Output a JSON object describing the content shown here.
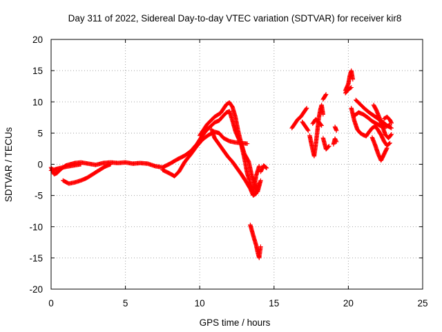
{
  "chart_data": {
    "type": "scatter",
    "title": "Day 311 of 2022, Sidereal Day-to-day VTEC variation (SDTVAR) for receiver kir8",
    "xlabel": "GPS time / hours",
    "ylabel": "SDTVAR / TECUs",
    "xlim": [
      0,
      25
    ],
    "ylim": [
      -20,
      20
    ],
    "xticks": [
      0,
      5,
      10,
      15,
      20,
      25
    ],
    "yticks": [
      -20,
      -15,
      -10,
      -5,
      0,
      5,
      10,
      15,
      20
    ],
    "grid": true,
    "marker": "+",
    "color": "#ff0000",
    "series": [
      {
        "name": "SDTVAR",
        "segments": [
          [
            [
              0,
              -0.5
            ],
            [
              0.2,
              -1.6
            ],
            [
              0.4,
              -1.4
            ],
            [
              0.6,
              -0.9
            ],
            [
              0.8,
              -0.5
            ],
            [
              1.0,
              -0.2
            ],
            [
              1.3,
              0.0
            ],
            [
              1.6,
              0.2
            ],
            [
              2.0,
              0.3
            ],
            [
              2.5,
              0.1
            ],
            [
              3.0,
              -0.1
            ],
            [
              3.5,
              0.2
            ],
            [
              4.0,
              0.3
            ],
            [
              4.5,
              0.2
            ],
            [
              5.0,
              0.3
            ],
            [
              5.5,
              0.1
            ],
            [
              6.0,
              0.2
            ],
            [
              6.5,
              0.1
            ],
            [
              7.0,
              -0.3
            ],
            [
              7.5,
              -0.5
            ],
            [
              8.0,
              0.1
            ],
            [
              8.5,
              0.8
            ],
            [
              9.0,
              1.4
            ],
            [
              9.4,
              2.1
            ],
            [
              9.8,
              3.2
            ],
            [
              10.1,
              4.3
            ],
            [
              10.4,
              5.3
            ],
            [
              10.7,
              6.0
            ],
            [
              11.0,
              6.7
            ],
            [
              11.3,
              7.0
            ],
            [
              11.6,
              7.8
            ],
            [
              11.8,
              8.3
            ],
            [
              12.0,
              8.5
            ],
            [
              12.2,
              7.0
            ],
            [
              12.4,
              5.3
            ],
            [
              12.6,
              4.2
            ],
            [
              12.8,
              3.1
            ],
            [
              13.0,
              1.0
            ],
            [
              13.2,
              -1.5
            ],
            [
              13.4,
              -3.0
            ],
            [
              13.6,
              -4.6
            ],
            [
              13.8,
              -1.8
            ],
            [
              14.0,
              -0.3
            ]
          ],
          [
            [
              0.8,
              -2.6
            ],
            [
              1.2,
              -3.1
            ],
            [
              1.6,
              -2.9
            ],
            [
              2.0,
              -2.6
            ],
            [
              2.4,
              -2.2
            ],
            [
              2.8,
              -1.6
            ],
            [
              3.2,
              -1.0
            ],
            [
              3.6,
              -0.4
            ],
            [
              4.0,
              0.0
            ]
          ],
          [
            [
              0,
              -1.0
            ],
            [
              0.3,
              -0.8
            ],
            [
              0.6,
              -0.6
            ],
            [
              1.0,
              -0.4
            ],
            [
              1.5,
              -0.2
            ],
            [
              2.0,
              0.0
            ]
          ],
          [
            [
              7.5,
              -0.9
            ],
            [
              8.0,
              -1.5
            ],
            [
              8.3,
              -1.9
            ],
            [
              8.6,
              -1.2
            ],
            [
              9.0,
              0.4
            ],
            [
              9.4,
              1.6
            ],
            [
              9.8,
              2.9
            ],
            [
              10.2,
              4.0
            ],
            [
              10.6,
              4.7
            ],
            [
              11.0,
              5.2
            ],
            [
              11.3,
              5.0
            ],
            [
              11.6,
              4.2
            ],
            [
              12.0,
              3.7
            ],
            [
              12.4,
              3.5
            ],
            [
              12.8,
              3.4
            ],
            [
              13.2,
              3.3
            ]
          ],
          [
            [
              10.0,
              4.6
            ],
            [
              10.5,
              6.4
            ],
            [
              11.0,
              7.6
            ],
            [
              11.4,
              8.2
            ],
            [
              11.8,
              9.6
            ],
            [
              12.0,
              9.9
            ],
            [
              12.2,
              9.2
            ],
            [
              12.4,
              7.6
            ],
            [
              12.6,
              5.2
            ],
            [
              12.8,
              3.3
            ],
            [
              13.0,
              1.7
            ],
            [
              13.3,
              0.4
            ],
            [
              13.5,
              -1.8
            ],
            [
              13.7,
              -3.2
            ],
            [
              13.9,
              -4.4
            ],
            [
              14.1,
              -2.6
            ]
          ],
          [
            [
              10.8,
              5.6
            ],
            [
              11.0,
              4.2
            ],
            [
              11.3,
              3.2
            ],
            [
              11.6,
              2.2
            ],
            [
              11.9,
              1.2
            ],
            [
              12.2,
              0.4
            ],
            [
              12.5,
              -0.6
            ],
            [
              12.8,
              -1.6
            ],
            [
              13.1,
              -2.7
            ],
            [
              13.4,
              -3.9
            ],
            [
              13.6,
              -5.0
            ],
            [
              13.8,
              -4.7
            ],
            [
              14.0,
              -3.0
            ]
          ],
          [
            [
              13.4,
              -9.7
            ],
            [
              13.6,
              -11.4
            ],
            [
              13.8,
              -13.0
            ],
            [
              13.9,
              -14.1
            ],
            [
              14.0,
              -15.0
            ],
            [
              14.1,
              -13.2
            ]
          ],
          [
            [
              14.1,
              -1.2
            ],
            [
              14.3,
              -0.2
            ],
            [
              14.5,
              -0.6
            ]
          ],
          [
            [
              16.2,
              5.8
            ],
            [
              16.4,
              6.5
            ],
            [
              16.6,
              7.2
            ],
            [
              16.8,
              7.6
            ],
            [
              17.0,
              8.3
            ],
            [
              17.2,
              9.0
            ]
          ],
          [
            [
              16.9,
              6.8
            ],
            [
              17.1,
              6.1
            ],
            [
              17.3,
              5.4
            ]
          ],
          [
            [
              17.4,
              4.6
            ],
            [
              17.5,
              3.4
            ],
            [
              17.6,
              2.3
            ],
            [
              17.7,
              1.3
            ],
            [
              17.8,
              3.0
            ],
            [
              17.9,
              5.0
            ],
            [
              18.0,
              7.2
            ],
            [
              18.1,
              8.6
            ],
            [
              18.2,
              9.5
            ],
            [
              18.3,
              8.0
            ]
          ],
          [
            [
              17.6,
              6.5
            ],
            [
              17.8,
              7.2
            ],
            [
              18.0,
              6.8
            ],
            [
              18.2,
              6.2
            ]
          ],
          [
            [
              18.3,
              10.4
            ],
            [
              18.5,
              11.2
            ]
          ],
          [
            [
              18.3,
              4.2
            ],
            [
              18.5,
              2.4
            ],
            [
              18.7,
              2.9
            ]
          ],
          [
            [
              19.0,
              3.2
            ],
            [
              19.1,
              4.1
            ],
            [
              19.2,
              3.6
            ]
          ],
          [
            [
              19.1,
              6.0
            ],
            [
              19.2,
              5.4
            ]
          ],
          [
            [
              19.8,
              11.8
            ],
            [
              20.0,
              12.9
            ],
            [
              20.1,
              14.2
            ],
            [
              20.2,
              15.0
            ],
            [
              20.3,
              13.6
            ]
          ],
          [
            [
              19.8,
              11.4
            ],
            [
              20.0,
              12.0
            ],
            [
              20.2,
              12.3
            ]
          ],
          [
            [
              20.2,
              9.0
            ],
            [
              20.4,
              7.0
            ],
            [
              20.6,
              5.6
            ],
            [
              20.8,
              5.0
            ],
            [
              21.0,
              4.7
            ],
            [
              21.2,
              4.5
            ],
            [
              21.4,
              5.2
            ],
            [
              21.6,
              5.8
            ],
            [
              21.8,
              6.1
            ],
            [
              22.0,
              5.5
            ],
            [
              22.2,
              4.7
            ],
            [
              22.4,
              3.7
            ],
            [
              22.6,
              3.0
            ],
            [
              22.8,
              3.4
            ]
          ],
          [
            [
              20.5,
              10.3
            ],
            [
              20.8,
              9.6
            ],
            [
              21.1,
              8.9
            ],
            [
              21.4,
              8.3
            ],
            [
              21.7,
              7.8
            ],
            [
              22.0,
              7.3
            ],
            [
              22.3,
              6.8
            ],
            [
              22.6,
              6.2
            ],
            [
              22.9,
              5.8
            ]
          ],
          [
            [
              20.4,
              7.8
            ],
            [
              20.7,
              8.3
            ],
            [
              21.0,
              8.0
            ],
            [
              21.3,
              7.5
            ],
            [
              21.6,
              6.9
            ],
            [
              21.9,
              6.5
            ],
            [
              22.2,
              6.1
            ],
            [
              22.5,
              6.0
            ],
            [
              22.8,
              6.3
            ]
          ],
          [
            [
              21.6,
              4.3
            ],
            [
              21.8,
              3.1
            ],
            [
              22.0,
              1.7
            ],
            [
              22.2,
              0.6
            ],
            [
              22.4,
              1.6
            ],
            [
              22.6,
              2.6
            ]
          ],
          [
            [
              21.7,
              9.5
            ],
            [
              21.9,
              8.6
            ],
            [
              22.1,
              7.4
            ],
            [
              22.3,
              6.0
            ],
            [
              22.5,
              4.7
            ],
            [
              22.7,
              4.2
            ],
            [
              22.9,
              4.8
            ]
          ],
          [
            [
              22.4,
              7.3
            ],
            [
              22.6,
              7.6
            ],
            [
              22.8,
              7.1
            ],
            [
              22.9,
              6.6
            ]
          ]
        ]
      }
    ]
  }
}
